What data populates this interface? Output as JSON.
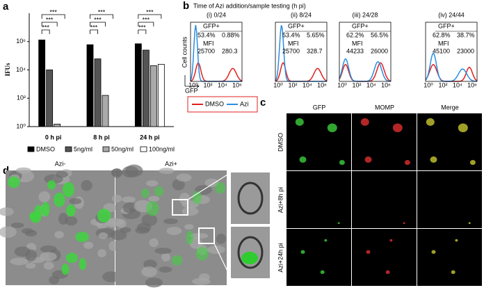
{
  "labels": [
    "a",
    "b",
    "c",
    "d"
  ],
  "chart_data": {
    "type": "bar",
    "y_label": "IFUs",
    "log_scale": true,
    "categories": [
      "0 h pi",
      "8 h pi",
      "24 h pi"
    ],
    "series": [
      {
        "name": "DMSO",
        "color": "#000000",
        "values": [
          1300000,
          600000,
          700000
        ]
      },
      {
        "name": "5ng/ml",
        "color": "#555555",
        "values": [
          10000,
          60000,
          250000
        ]
      },
      {
        "name": "50ng/ml",
        "color": "#aaaaaa",
        "values": [
          1.5,
          160,
          20000
        ]
      },
      {
        "name": "100ng/ml",
        "color": "#ffffff",
        "values": [
          null,
          null,
          25000
        ]
      }
    ],
    "ylim": [
      1,
      100000000
    ],
    "yticks": [
      {
        "value": 1,
        "label": "10⁰"
      },
      {
        "value": 100,
        "label": "10²"
      },
      {
        "value": 10000,
        "label": "10⁴"
      },
      {
        "value": 1000000,
        "label": "10⁶"
      }
    ],
    "annotations": [
      "***",
      "***",
      "***",
      "***",
      "***",
      "***",
      "***",
      "***",
      "***"
    ]
  },
  "panel_b": {
    "title": "Time of Azi addition/sample testing (h pi)",
    "y_label": "Cell counts",
    "x_label": "GFP",
    "xtick_labels": [
      "10⁰",
      "10²",
      "10⁴",
      "10⁶"
    ],
    "plots": [
      {
        "title": "(i) 0/24",
        "gate": "GFP+",
        "dmso_pct": "53.4%",
        "azi_pct": "0.88%",
        "mfi": "MFI",
        "dmso_mfi": "25700",
        "azi_mfi": "280.3"
      },
      {
        "title": "(ii) 8/24",
        "gate": "GFP+",
        "dmso_pct": "53.4%",
        "azi_pct": "5.65%",
        "mfi": "MFI",
        "dmso_mfi": "25700",
        "azi_mfi": "328.7"
      },
      {
        "title": "(iii) 24/28",
        "gate": "GFP+",
        "dmso_pct": "62.2%",
        "azi_pct": "56.5%",
        "mfi": "MFI",
        "dmso_mfi": "44233",
        "azi_mfi": "26000"
      },
      {
        "title": "(iv) 24/44",
        "gate": "GFP+",
        "dmso_pct": "62.8%",
        "azi_pct": "38.7%",
        "mfi": "MFI",
        "dmso_mfi": "45100",
        "azi_mfi": "23000"
      }
    ],
    "legend": [
      "DMSO",
      "Azi"
    ]
  },
  "panel_c": {
    "columns": [
      "GFP",
      "MOMP",
      "Merge"
    ],
    "rows": [
      "DMSO",
      "Azi+8h pi",
      "Azi+24h pi"
    ]
  },
  "panel_d": {
    "images": [
      "Azi-",
      "Azi+"
    ]
  }
}
